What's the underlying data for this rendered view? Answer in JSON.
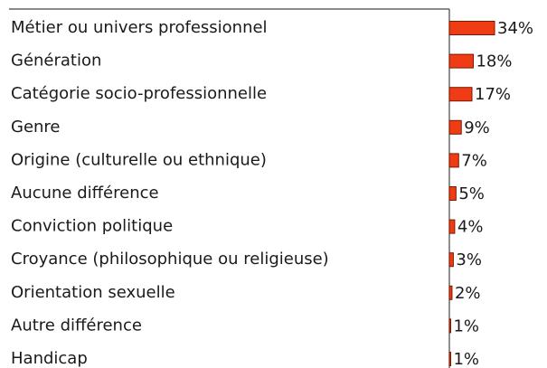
{
  "chart_data": {
    "type": "bar",
    "orientation": "horizontal",
    "categories": [
      "Métier ou univers professionnel",
      "Génération",
      "Catégorie socio-professionnelle",
      "Genre",
      "Origine (culturelle ou ethnique)",
      "Aucune différence",
      "Conviction politique",
      "Croyance (philosophique ou religieuse)",
      "Orientation sexuelle",
      "Autre différence",
      "Handicap"
    ],
    "values": [
      34,
      18,
      17,
      9,
      7,
      5,
      4,
      3,
      2,
      1,
      1
    ],
    "value_labels": [
      "34%",
      "18%",
      "17%",
      "9%",
      "7%",
      "5%",
      "4%",
      "3%",
      "2%",
      "1%",
      "1%"
    ],
    "color": "#f03c14"
  }
}
